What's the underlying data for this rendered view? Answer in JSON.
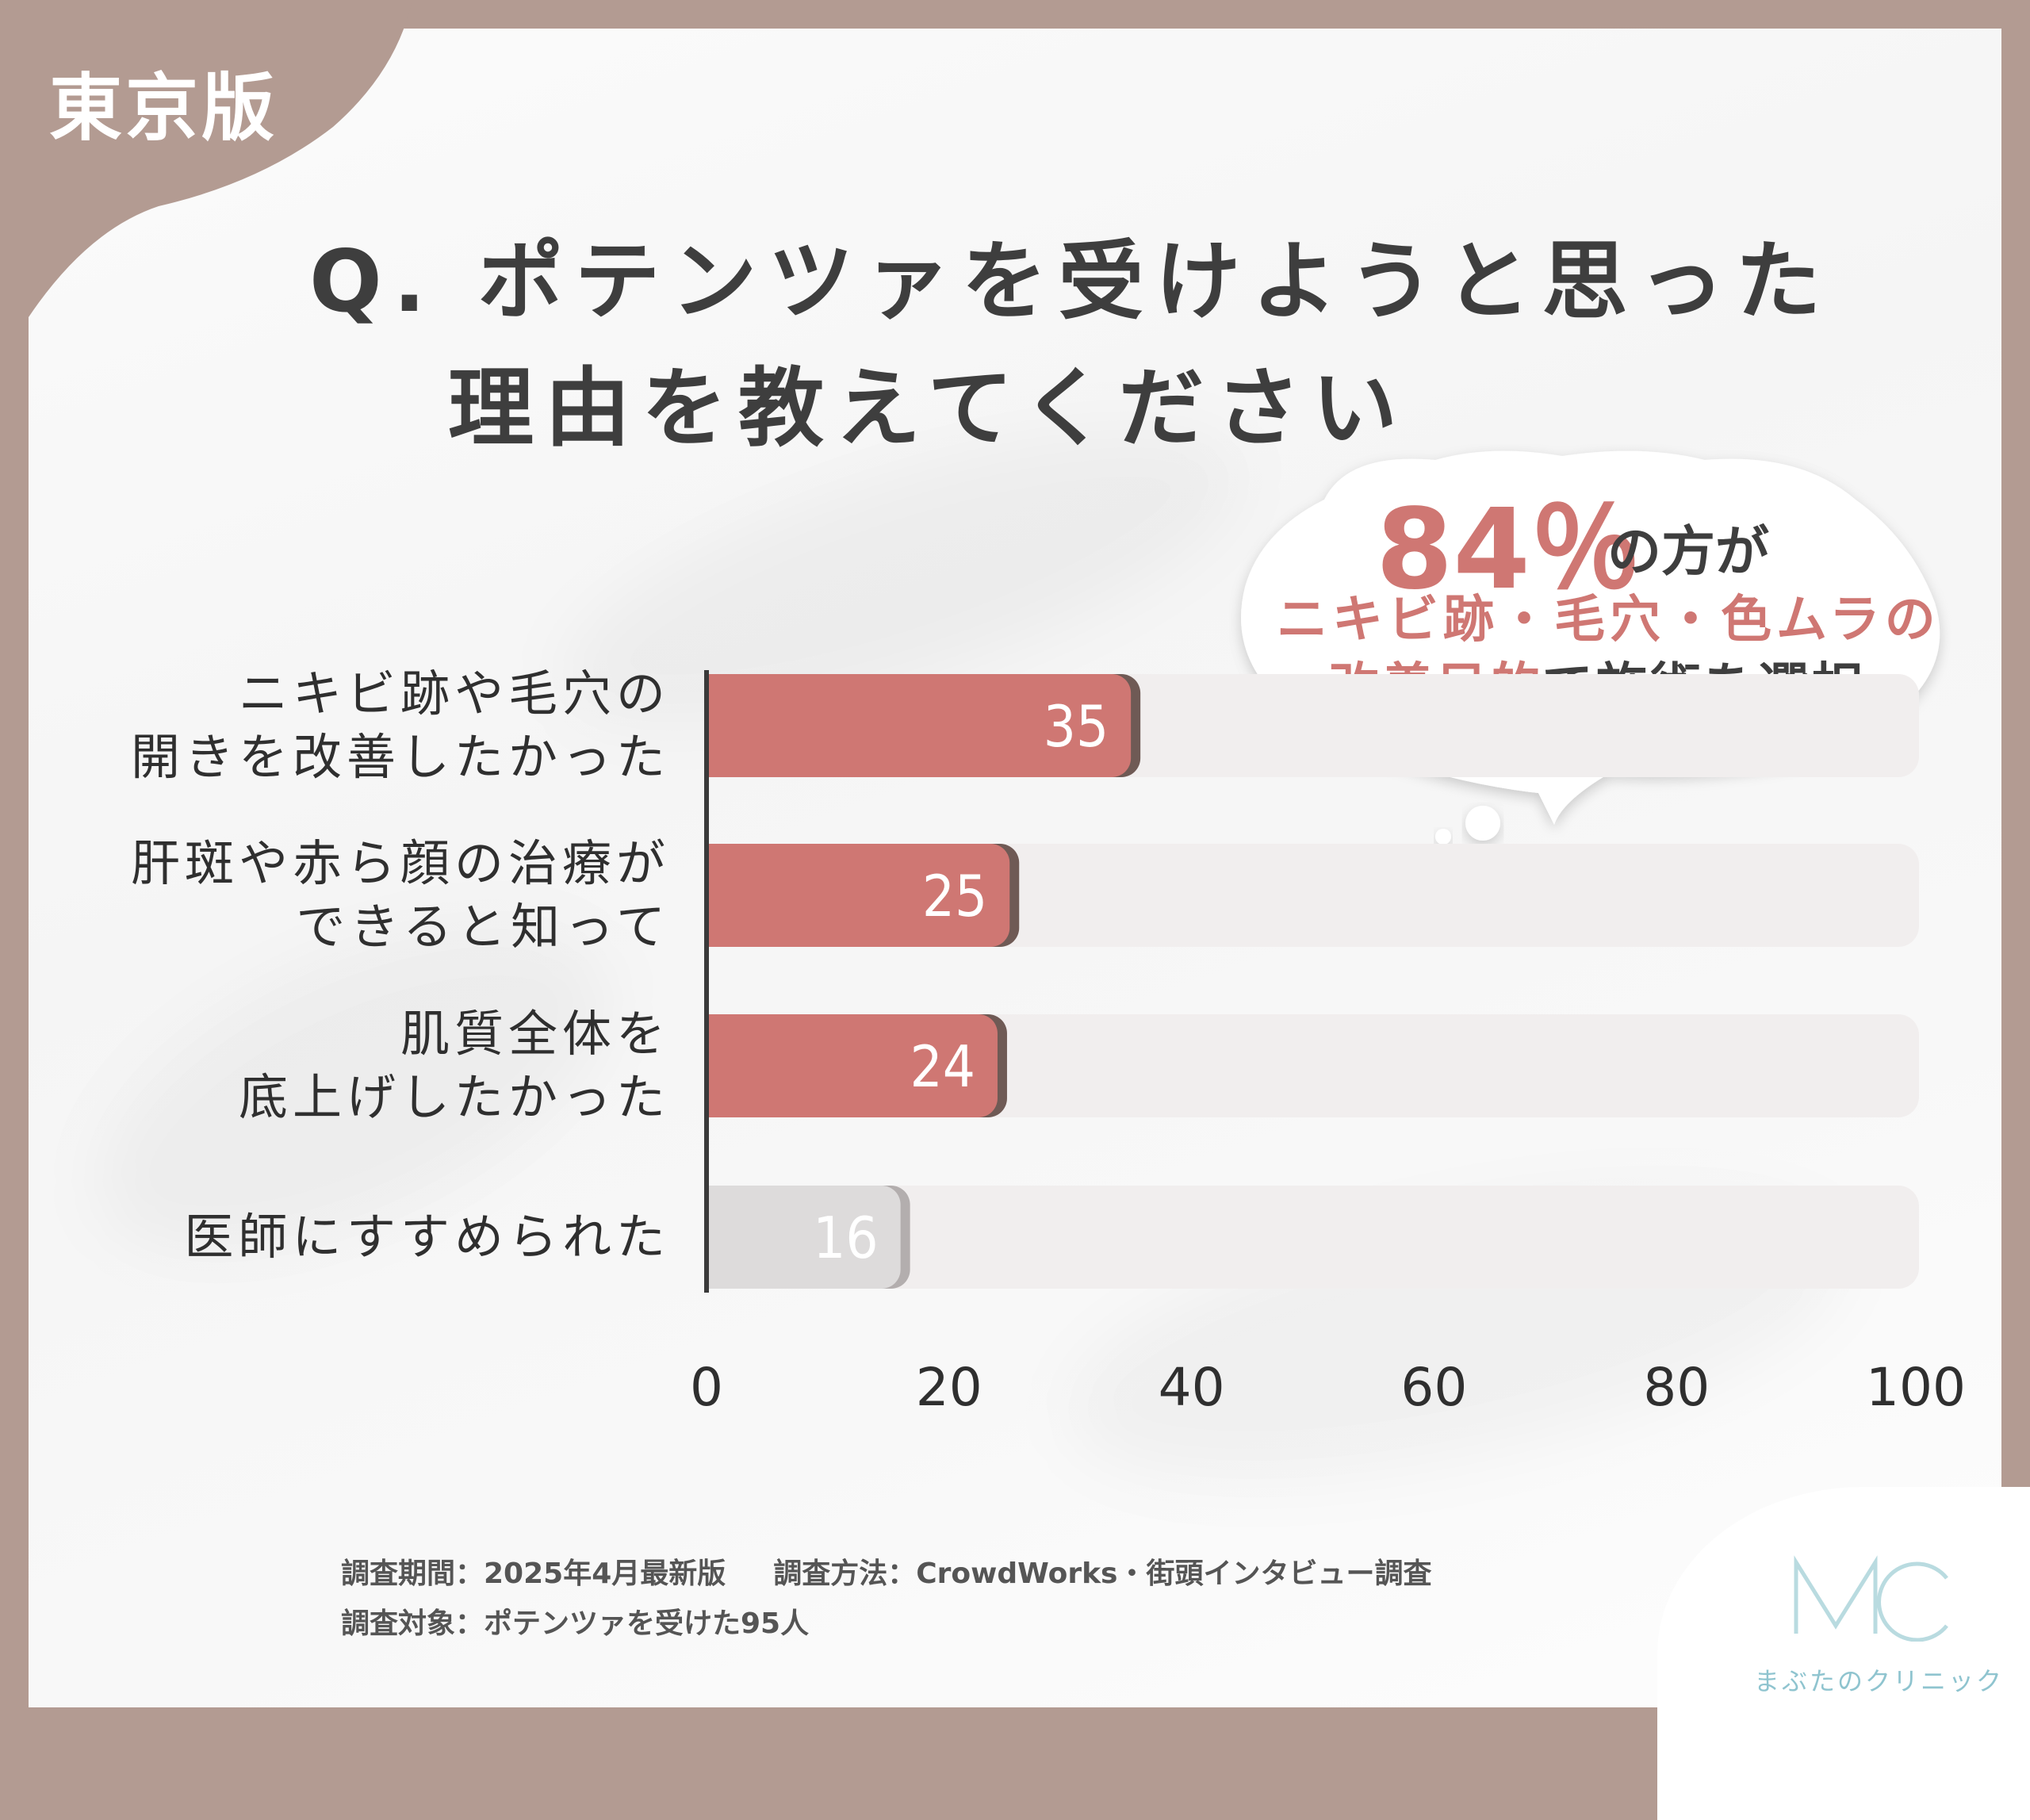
{
  "region_label": "東京版",
  "title": {
    "line1": "Q. ポテンツァを受けようと思った",
    "line2": "理由を教えてください"
  },
  "callout": {
    "percent": "84％",
    "percent_suffix": "の方が",
    "line2": "ニキビ跡・毛穴・色ムラの",
    "line3_highlight": "改善目的",
    "line3_rest": "で施術を選択"
  },
  "colors": {
    "bar_primary": "#cf7773",
    "bar_primary_shadow": "#6f5a55",
    "bar_muted": "#dddbdb",
    "bar_muted_shadow": "#b3aeae",
    "track": "#f1eeee",
    "frame": "#b39b92",
    "text_dark": "#2f2f2f",
    "accent": "#cf7773",
    "logo": "#8fc4cf"
  },
  "chart_data": {
    "type": "bar",
    "orientation": "horizontal",
    "categories": [
      [
        "ニキビ跡や毛穴の",
        "開きを改善したかった"
      ],
      [
        "肝斑や赤ら顔の治療が",
        "できると知って"
      ],
      [
        "肌質全体を",
        "底上げしたかった"
      ],
      [
        "医師にすすめられた"
      ]
    ],
    "values": [
      35,
      25,
      24,
      16
    ],
    "value_labels": [
      "35",
      "25",
      "24",
      "16"
    ],
    "highlighted": [
      true,
      true,
      true,
      false
    ],
    "xlim": [
      0,
      100
    ],
    "xticks": [
      "0",
      "20",
      "40",
      "60",
      "80",
      "100"
    ],
    "grid": false
  },
  "footer": {
    "period": "調査期間：2025年4月最新版",
    "method": "調査方法：CrowdWorks・街頭インタビュー調査",
    "target": "調査対象：ポテンツァを受けた95人"
  },
  "logo": {
    "mark": "MC",
    "name": "まぶたのクリニック"
  }
}
